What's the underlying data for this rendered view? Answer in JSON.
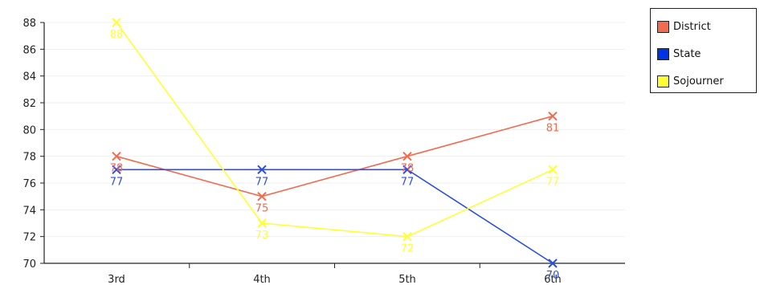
{
  "chart_data": {
    "type": "line",
    "title": "",
    "xlabel": "",
    "ylabel": "",
    "categories": [
      "3rd",
      "4th",
      "5th",
      "6th"
    ],
    "ylim": [
      70,
      88
    ],
    "yticks": [
      70,
      72,
      74,
      76,
      78,
      80,
      82,
      84,
      86,
      88
    ],
    "grid": true,
    "legend_position": "top-right",
    "series": [
      {
        "name": "District",
        "color": "#f26a4f",
        "values": [
          78,
          75,
          78,
          81
        ],
        "labels": [
          "78",
          "75",
          "78",
          "81"
        ]
      },
      {
        "name": "State",
        "color": "#2b4fe0",
        "values": [
          77,
          77,
          77,
          70
        ],
        "labels": [
          "77",
          "77",
          "77",
          "70"
        ]
      },
      {
        "name": "Sojourner",
        "color": "#ffff33",
        "values": [
          88,
          73,
          72,
          77
        ],
        "labels": [
          "88",
          "73",
          "72",
          "77"
        ]
      }
    ]
  },
  "legend": {
    "items": [
      {
        "label": "District",
        "color": "#f26a4f"
      },
      {
        "label": "State",
        "color": "#0033e6"
      },
      {
        "label": "Sojourner",
        "color": "#ffff33"
      }
    ]
  }
}
